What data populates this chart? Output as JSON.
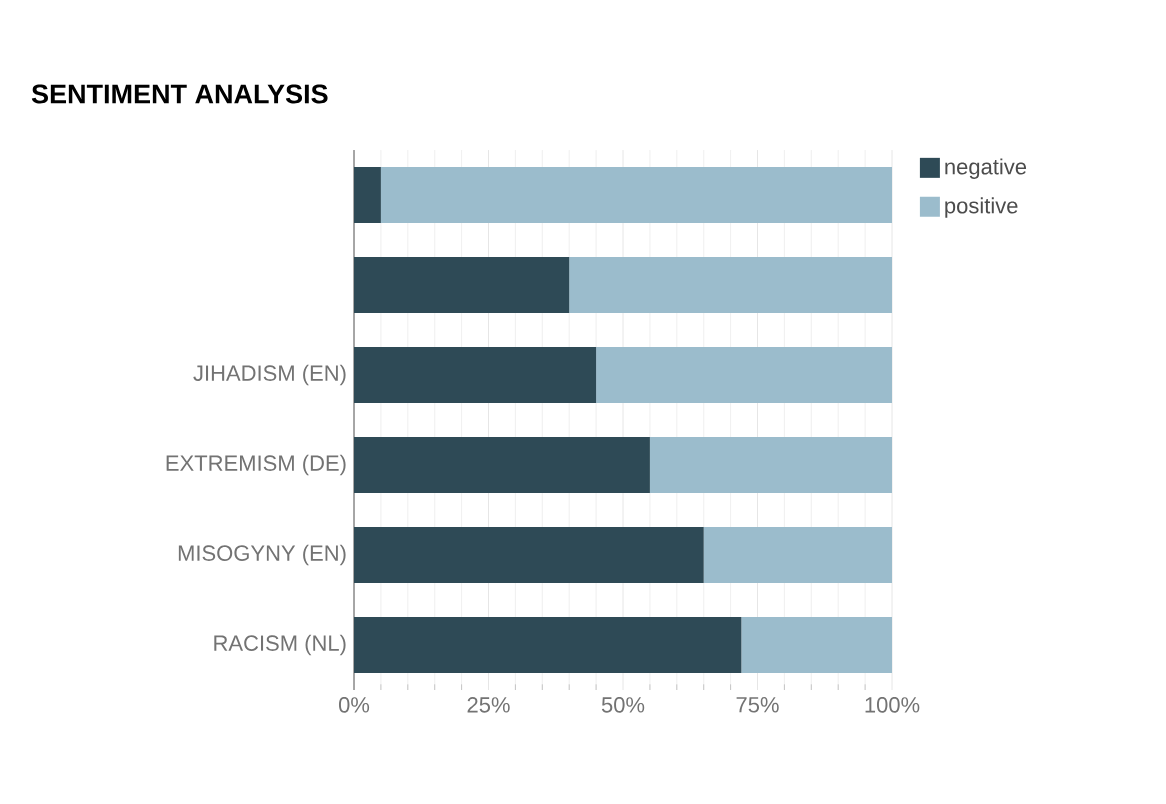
{
  "chart_data": {
    "type": "bar",
    "title": "SENTIMENT ANALYSIS",
    "orientation": "horizontal",
    "stacked": true,
    "categories": [
      null,
      null,
      "JIHADISM (EN)",
      "EXTREMISM (DE)",
      "MISOGYNY (EN)",
      "RACISM (NL)"
    ],
    "series": [
      {
        "name": "negative",
        "color": "#2e4a56",
        "values": [
          5,
          40,
          45,
          55,
          65,
          72
        ]
      },
      {
        "name": "positive",
        "color": "#9bbccc",
        "values": [
          95,
          60,
          55,
          45,
          35,
          28
        ]
      }
    ],
    "xlim": [
      0,
      100
    ],
    "xticks": [
      {
        "value": 0,
        "label": "0%"
      },
      {
        "value": 25,
        "label": "25%"
      },
      {
        "value": 50,
        "label": "50%"
      },
      {
        "value": 75,
        "label": "75%"
      },
      {
        "value": 100,
        "label": "100%"
      }
    ],
    "grid": "x",
    "legend": "top right"
  }
}
